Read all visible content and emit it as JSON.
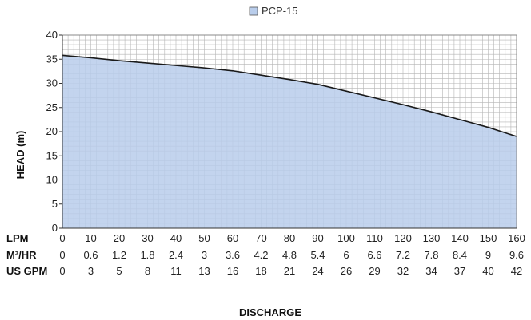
{
  "chart_data": {
    "type": "area",
    "series": [
      {
        "name": "PCP-15",
        "x": [
          0,
          10,
          20,
          30,
          40,
          50,
          60,
          70,
          80,
          90,
          100,
          110,
          120,
          130,
          140,
          150,
          160
        ],
        "values": [
          35.8,
          35.3,
          34.7,
          34.2,
          33.7,
          33.2,
          32.6,
          31.7,
          30.8,
          29.8,
          28.4,
          27.0,
          25.6,
          24.1,
          22.5,
          20.9,
          19.0
        ]
      }
    ],
    "ylabel": "HEAD (m)",
    "xlabel": "DISCHARGE",
    "ylim": [
      0,
      40
    ],
    "xlim": [
      0,
      160
    ],
    "yticks": [
      "0",
      "5",
      "10",
      "15",
      "20",
      "25",
      "30",
      "35",
      "40"
    ],
    "grid": true,
    "legend_position": "top",
    "x_rows": [
      {
        "label": "LPM",
        "values": [
          "0",
          "10",
          "20",
          "30",
          "40",
          "50",
          "60",
          "70",
          "80",
          "90",
          "100",
          "110",
          "120",
          "130",
          "140",
          "150",
          "160"
        ]
      },
      {
        "label": "M³/HR",
        "values": [
          "0",
          "0.6",
          "1.2",
          "1.8",
          "2.4",
          "3",
          "3.6",
          "4.2",
          "4.8",
          "5.4",
          "6",
          "6.6",
          "7.2",
          "7.8",
          "8.4",
          "9",
          "9.6"
        ]
      },
      {
        "label": "US GPM",
        "values": [
          "0",
          "3",
          "5",
          "8",
          "11",
          "13",
          "16",
          "18",
          "21",
          "24",
          "26",
          "29",
          "32",
          "34",
          "37",
          "40",
          "42"
        ]
      }
    ],
    "colors": {
      "fill": "#b9cdeb",
      "line": "#1a1a1a",
      "grid": "#b5b5b5"
    }
  }
}
